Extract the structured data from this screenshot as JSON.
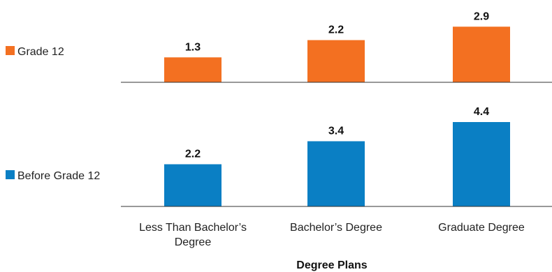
{
  "chart_data": [
    {
      "type": "bar",
      "categories": [
        "Less Than Bachelor's Degree",
        "Bachelor's Degree",
        "Graduate Degree"
      ],
      "category_labels": [
        [
          "Less Than Bachelor’s",
          "Degree"
        ],
        [
          "Bachelor’s Degree"
        ],
        [
          "Graduate Degree"
        ]
      ],
      "series": [
        {
          "name": "Grade 12",
          "values": [
            1.3,
            2.2,
            2.9
          ],
          "color": "#f37021"
        }
      ],
      "ylim": [
        0,
        4.4
      ],
      "xlabel": "Degree Plans",
      "legend_position": "left",
      "grid": false
    },
    {
      "type": "bar",
      "categories": [
        "Less Than Bachelor's Degree",
        "Bachelor's Degree",
        "Graduate Degree"
      ],
      "category_labels": [
        [
          "Less Than Bachelor’s",
          "Degree"
        ],
        [
          "Bachelor’s Degree"
        ],
        [
          "Graduate Degree"
        ]
      ],
      "series": [
        {
          "name": "Before Grade 12",
          "values": [
            2.2,
            3.4,
            4.4
          ],
          "color": "#0a7fc4"
        }
      ],
      "ylim": [
        0,
        4.4
      ],
      "xlabel": "Degree Plans",
      "legend_position": "left",
      "grid": false
    }
  ]
}
